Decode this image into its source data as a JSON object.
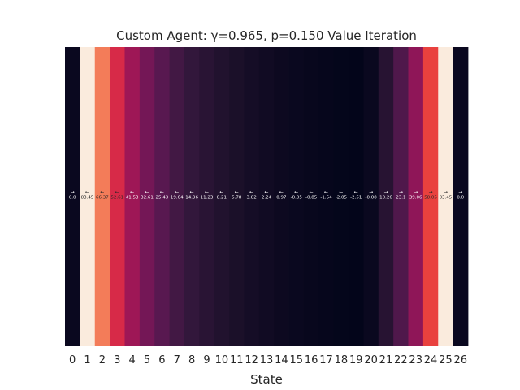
{
  "chart_data": {
    "type": "heatmap",
    "title": "Custom Agent: γ=0.965, p=0.150 Value Iteration",
    "xlabel": "State",
    "ylabel": "",
    "grid": false,
    "categories": [
      "0",
      "1",
      "2",
      "3",
      "4",
      "5",
      "6",
      "7",
      "8",
      "9",
      "10",
      "11",
      "12",
      "13",
      "14",
      "15",
      "16",
      "17",
      "18",
      "19",
      "20",
      "21",
      "22",
      "23",
      "24",
      "25",
      "26"
    ],
    "values": [
      0.0,
      83.45,
      66.37,
      52.61,
      41.53,
      32.61,
      25.43,
      19.64,
      14.96,
      11.23,
      8.21,
      5.78,
      3.82,
      2.24,
      0.97,
      -0.05,
      -0.85,
      -1.54,
      -2.05,
      -2.51,
      -0.08,
      10.26,
      23.1,
      39.06,
      58.05,
      83.45,
      0.0
    ],
    "value_labels": [
      "0.0",
      "83.45",
      "66.37",
      "52.61",
      "41.53",
      "32.61",
      "25.43",
      "19.64",
      "14.96",
      "11.23",
      "8.21",
      "5.78",
      "3.82",
      "2.24",
      "0.97",
      "-0.05",
      "-0.85",
      "-1.54",
      "-2.05",
      "-2.51",
      "-0.08",
      "10.26",
      "23.1",
      "39.06",
      "58.05",
      "83.45",
      "0.0"
    ],
    "policy_arrows": [
      "→",
      "←",
      "←",
      "←",
      "←",
      "←",
      "←",
      "←",
      "←",
      "←",
      "←",
      "←",
      "←",
      "←",
      "←",
      "←",
      "←",
      "←",
      "←",
      "←",
      "→",
      "→",
      "→",
      "→",
      "→",
      "→",
      "→"
    ],
    "colormap": "rocket",
    "vlim": [
      -2.51,
      83.45
    ]
  }
}
